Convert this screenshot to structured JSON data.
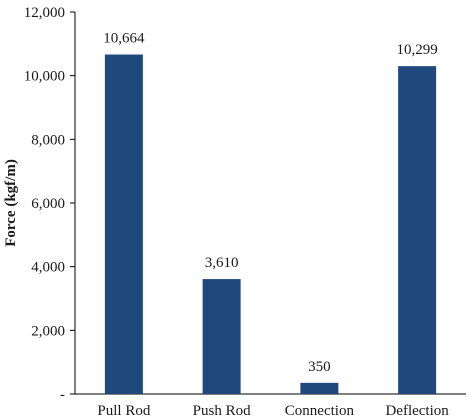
{
  "chart_data": {
    "type": "bar",
    "categories": [
      "Pull Rod",
      "Push Rod",
      "Connection",
      "Deflection"
    ],
    "values": [
      10664,
      3610,
      350,
      10299
    ],
    "data_labels": [
      "10,664",
      "3,610",
      "350",
      "10,299"
    ],
    "title": "",
    "xlabel": "",
    "ylabel": "Force (kgf/m)",
    "ylim": [
      0,
      12000
    ],
    "yticks": [
      0,
      2000,
      4000,
      6000,
      8000,
      10000,
      12000
    ],
    "ytick_labels": [
      "-",
      "2,000",
      "4,000",
      "6,000",
      "8,000",
      "10,000",
      "12,000"
    ],
    "grid": false,
    "legend": "none",
    "bar_color": "#1f497d"
  }
}
